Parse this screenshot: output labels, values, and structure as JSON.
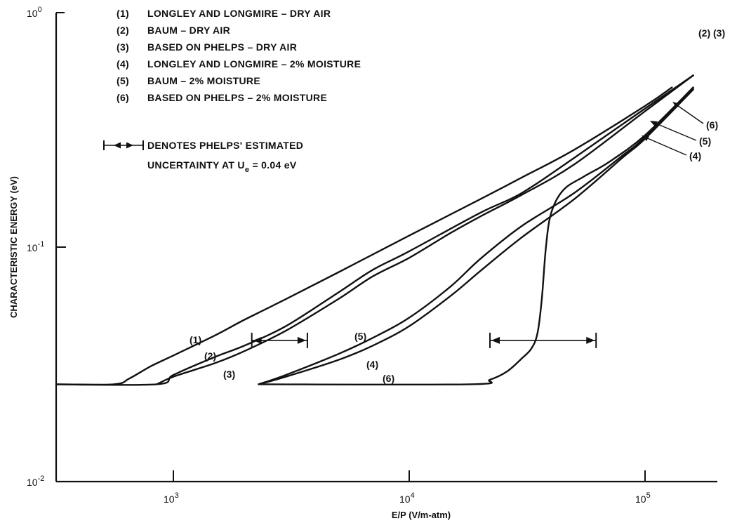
{
  "chart_data": {
    "type": "line",
    "x_scale": "log",
    "y_scale": "log",
    "xlabel": "E/P (V/m-atm)",
    "ylabel": "CHARACTERISTIC ENERGY (eV)",
    "xlim": [
      300,
      180000
    ],
    "ylim": [
      0.01,
      1.0
    ],
    "x_ticks": [
      {
        "value": 1000,
        "base": "10",
        "exp": "3"
      },
      {
        "value": 10000,
        "base": "10",
        "exp": "4"
      },
      {
        "value": 100000,
        "base": "10",
        "exp": "5"
      }
    ],
    "y_ticks": [
      {
        "value": 1.0,
        "base": "10",
        "exp": "0"
      },
      {
        "value": 0.1,
        "base": "10",
        "exp": "-1"
      },
      {
        "value": 0.01,
        "base": "10",
        "exp": "-2"
      }
    ],
    "grid": false,
    "legend_position": "top-left",
    "legend": [
      {
        "num": "(1)",
        "text": "LONGLEY AND LONGMIRE – DRY AIR"
      },
      {
        "num": "(2)",
        "text": "BAUM – DRY AIR"
      },
      {
        "num": "(3)",
        "text": "BASED ON PHELPS – DRY AIR"
      },
      {
        "num": "(4)",
        "text": "LONGLEY AND LONGMIRE – 2% MOISTURE"
      },
      {
        "num": "(5)",
        "text": "BAUM – 2% MOISTURE"
      },
      {
        "num": "(6)",
        "text": "BASED ON PHELPS – 2% MOISTURE"
      }
    ],
    "note": {
      "line1": "DENOTES PHELPS' ESTIMATED",
      "line2_prefix": "UNCERTAINTY AT U",
      "line2_sub": "e",
      "line2_suffix": " = 0.04 eV"
    },
    "series": [
      {
        "name": "(1)",
        "label": "(1)",
        "x": [
          300,
          560,
          650,
          800,
          1000,
          1500,
          2000,
          3000,
          5000,
          10000,
          20000,
          30000,
          50000,
          100000,
          130000
        ],
        "y": [
          0.026,
          0.026,
          0.0275,
          0.031,
          0.0345,
          0.042,
          0.049,
          0.06,
          0.078,
          0.112,
          0.16,
          0.198,
          0.26,
          0.4,
          0.48
        ]
      },
      {
        "name": "(2)",
        "label": "(2)",
        "x": [
          300,
          850,
          1000,
          1500,
          2000,
          3000,
          5000,
          7000,
          10000,
          20000,
          30000,
          50000,
          100000,
          160000
        ],
        "y": [
          0.026,
          0.026,
          0.0285,
          0.034,
          0.038,
          0.046,
          0.064,
          0.08,
          0.096,
          0.14,
          0.17,
          0.24,
          0.39,
          0.54
        ]
      },
      {
        "name": "(3)",
        "label": "(3)",
        "x": [
          850,
          1000,
          1500,
          2000,
          3000,
          5000,
          7000,
          10000,
          15000,
          20000,
          30000,
          50000,
          100000,
          160000
        ],
        "y": [
          0.026,
          0.028,
          0.032,
          0.036,
          0.044,
          0.06,
          0.075,
          0.09,
          0.115,
          0.135,
          0.167,
          0.225,
          0.38,
          0.54
        ]
      },
      {
        "name": "(4)",
        "label": "(4)",
        "x": [
          2300,
          3000,
          5000,
          7000,
          10000,
          15000,
          20000,
          30000,
          50000,
          80000,
          100000,
          160000
        ],
        "y": [
          0.026,
          0.028,
          0.033,
          0.038,
          0.046,
          0.062,
          0.079,
          0.11,
          0.16,
          0.24,
          0.29,
          0.47
        ]
      },
      {
        "name": "(5)",
        "label": "(5)",
        "x": [
          2300,
          3000,
          5000,
          7000,
          10000,
          15000,
          20000,
          30000,
          50000,
          80000,
          100000,
          160000
        ],
        "y": [
          0.026,
          0.0285,
          0.035,
          0.041,
          0.05,
          0.068,
          0.089,
          0.123,
          0.17,
          0.245,
          0.295,
          0.475
        ]
      },
      {
        "name": "(6)",
        "label": "(6)",
        "x": [
          2300,
          18000,
          22000,
          26000,
          30000,
          33000,
          35000,
          36500,
          38000,
          40000,
          45000,
          55000,
          70000,
          100000,
          160000
        ],
        "y": [
          0.026,
          0.026,
          0.0272,
          0.0295,
          0.0335,
          0.037,
          0.043,
          0.06,
          0.1,
          0.14,
          0.175,
          0.2,
          0.23,
          0.3,
          0.48
        ]
      }
    ],
    "error_bars": [
      {
        "x_low": 2150,
        "x_high": 3700,
        "y": 0.04
      },
      {
        "x_low": 22000,
        "x_high": 62000,
        "y": 0.04
      }
    ],
    "curve_labels": {
      "right_top": "(2) (3)",
      "right_6": "(6)",
      "right_5": "(5)",
      "right_4": "(4)",
      "low_1": "(1)",
      "low_2": "(2)",
      "low_3": "(3)",
      "low_5": "(5)",
      "low_4": "(4)",
      "low_6": "(6)"
    }
  }
}
